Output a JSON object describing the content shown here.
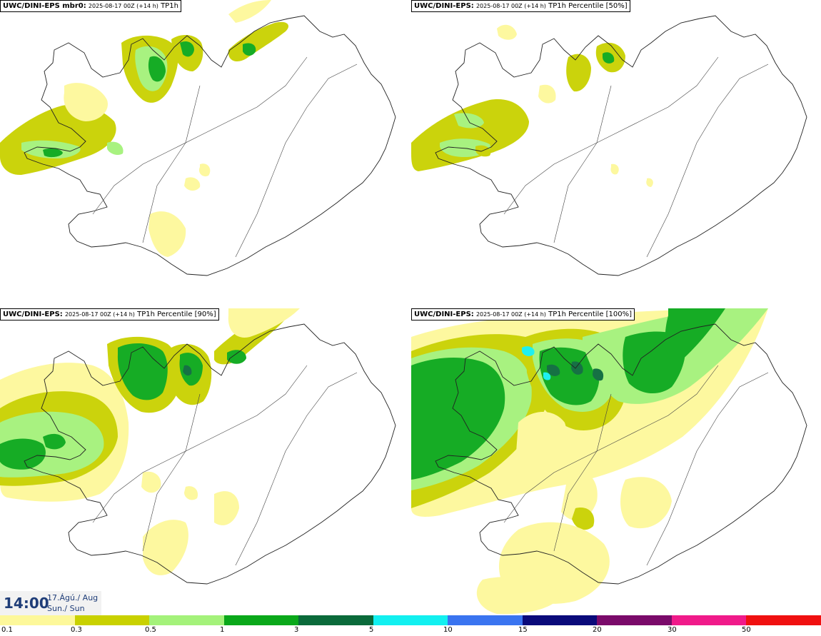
{
  "panels": [
    {
      "model": "UWC/DINI-EPS mbr0",
      "run": "2025-08-17 00Z (+14 h)",
      "field": "TP1h"
    },
    {
      "model": "UWC/DINI-EPS",
      "run": "2025-08-17 00Z (+14 h)",
      "field": "TP1h Percentile [50%]"
    },
    {
      "model": "UWC/DINI-EPS",
      "run": "2025-08-17 00Z (+14 h)",
      "field": "TP1h Percentile [90%]"
    },
    {
      "model": "UWC/DINI-EPS",
      "run": "2025-08-17 00Z (+14 h)",
      "field": "TP1h Percentile [100%]"
    }
  ],
  "valid_time": {
    "time": "14:00",
    "date_line": "17.Ágú./ Aug",
    "day_line": "Sun./ Sun"
  },
  "legend": {
    "ticks": [
      "0.1",
      "0.3",
      "0.5",
      "1",
      "3",
      "5",
      "10",
      "15",
      "20",
      "30",
      "50"
    ],
    "colors": [
      "#fdf89a",
      "#c9d100",
      "#a4f27a",
      "#0aa81a",
      "#0a6a3a",
      "#12f0f0",
      "#3a74f0",
      "#0a0a7a",
      "#7a0a6a",
      "#f01a8a",
      "#f01010"
    ]
  }
}
